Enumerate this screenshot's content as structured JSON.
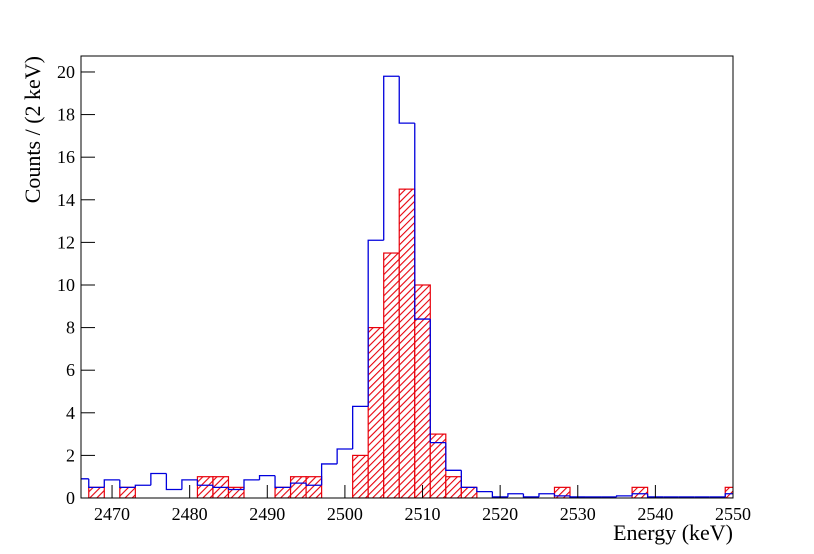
{
  "chart_data": {
    "type": "histogram",
    "x_label": "Energy (keV)",
    "y_label": "Counts / (2 keV)",
    "bins": [
      2465,
      2467,
      2469,
      2471,
      2473,
      2475,
      2477,
      2479,
      2481,
      2483,
      2485,
      2487,
      2489,
      2491,
      2493,
      2495,
      2497,
      2499,
      2501,
      2503,
      2505,
      2507,
      2509,
      2511,
      2513,
      2515,
      2517,
      2519,
      2521,
      2523,
      2525,
      2527,
      2529,
      2531,
      2533,
      2535,
      2537,
      2539,
      2541,
      2543,
      2545,
      2547,
      2549,
      2551
    ],
    "series": [
      {
        "color": "#0000dd",
        "style": "step",
        "values": [
          0.9,
          0.5,
          0.85,
          0.5,
          0.6,
          1.15,
          0.4,
          0.85,
          0.6,
          0.5,
          0.4,
          0.85,
          1.05,
          0.5,
          0.7,
          0.6,
          1.6,
          2.3,
          4.3,
          12.1,
          19.8,
          17.6,
          8.4,
          2.6,
          1.3,
          0.5,
          0.3,
          0.05,
          0.2,
          0.05,
          0.2,
          0.1,
          0.05,
          0.05,
          0.05,
          0.1,
          0.2,
          0.05,
          0.05,
          0.05,
          0.05,
          0.05,
          0.2
        ]
      },
      {
        "color": "#e8000b",
        "style": "hatch",
        "values": [
          0,
          0.5,
          0,
          0.5,
          0,
          0,
          0,
          0,
          1.0,
          1.0,
          0.5,
          0,
          0,
          0.5,
          1.0,
          1.0,
          0,
          0,
          2.0,
          8.0,
          11.5,
          14.5,
          10.0,
          3.0,
          1.0,
          0.5,
          0,
          0,
          0,
          0,
          0,
          0.5,
          0,
          0,
          0,
          0,
          0.5,
          0,
          0,
          0,
          0,
          0,
          0.5
        ]
      }
    ],
    "xlim": [
      2466,
      2550
    ],
    "xticks": [
      2470,
      2480,
      2490,
      2500,
      2510,
      2520,
      2530,
      2540,
      2550
    ],
    "ylim": [
      0,
      20.75
    ],
    "yticks": [
      0,
      2,
      4,
      6,
      8,
      10,
      12,
      14,
      16,
      18,
      20
    ]
  }
}
